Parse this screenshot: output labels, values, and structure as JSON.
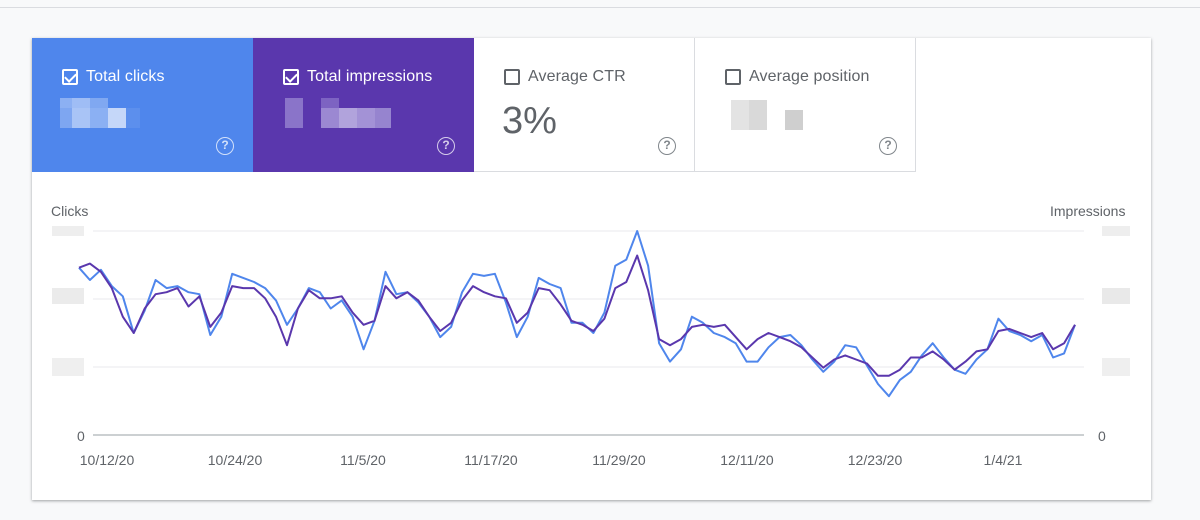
{
  "tiles": {
    "clicks": {
      "label": "Total clicks",
      "checked": true,
      "color": "#4f86ec"
    },
    "impressions": {
      "label": "Total impressions",
      "checked": true,
      "color": "#5a37ad"
    },
    "ctr": {
      "label": "Average CTR",
      "value": "3%",
      "checked": false
    },
    "position": {
      "label": "Average position",
      "checked": false
    }
  },
  "chart_data": {
    "type": "line",
    "y_left_label": "Clicks",
    "y_right_label": "Impressions",
    "y_left_zero": "0",
    "y_right_zero": "0",
    "x_ticks": [
      "10/12/20",
      "10/24/20",
      "11/5/20",
      "11/17/20",
      "11/29/20",
      "12/11/20",
      "12/23/20",
      "1/4/21"
    ],
    "ylim": [
      0,
      1
    ],
    "grid": true,
    "series": [
      {
        "name": "Total clicks",
        "color": "#4f86ec",
        "values": [
          0.82,
          0.76,
          0.81,
          0.73,
          0.68,
          0.5,
          0.61,
          0.76,
          0.72,
          0.73,
          0.7,
          0.69,
          0.49,
          0.58,
          0.79,
          0.77,
          0.75,
          0.72,
          0.66,
          0.54,
          0.62,
          0.72,
          0.7,
          0.62,
          0.66,
          0.58,
          0.42,
          0.56,
          0.8,
          0.69,
          0.7,
          0.65,
          0.58,
          0.48,
          0.53,
          0.7,
          0.79,
          0.78,
          0.79,
          0.65,
          0.48,
          0.58,
          0.77,
          0.74,
          0.72,
          0.55,
          0.55,
          0.5,
          0.6,
          0.83,
          0.86,
          1.0,
          0.83,
          0.45,
          0.36,
          0.42,
          0.58,
          0.55,
          0.5,
          0.48,
          0.45,
          0.36,
          0.36,
          0.43,
          0.48,
          0.49,
          0.44,
          0.37,
          0.31,
          0.36,
          0.44,
          0.43,
          0.34,
          0.25,
          0.19,
          0.27,
          0.31,
          0.39,
          0.45,
          0.38,
          0.32,
          0.3,
          0.37,
          0.42,
          0.57,
          0.51,
          0.49,
          0.46,
          0.49,
          0.38,
          0.4,
          0.54
        ],
        "series_label_shown": false
      },
      {
        "name": "Total impressions",
        "color": "#5a37ad",
        "values": [
          0.82,
          0.84,
          0.8,
          0.72,
          0.58,
          0.5,
          0.62,
          0.69,
          0.7,
          0.72,
          0.63,
          0.68,
          0.53,
          0.6,
          0.73,
          0.72,
          0.72,
          0.67,
          0.58,
          0.44,
          0.62,
          0.71,
          0.67,
          0.67,
          0.68,
          0.6,
          0.54,
          0.56,
          0.73,
          0.67,
          0.7,
          0.66,
          0.58,
          0.51,
          0.55,
          0.66,
          0.73,
          0.7,
          0.68,
          0.67,
          0.55,
          0.6,
          0.72,
          0.71,
          0.64,
          0.56,
          0.54,
          0.51,
          0.57,
          0.72,
          0.75,
          0.88,
          0.71,
          0.47,
          0.44,
          0.47,
          0.53,
          0.54,
          0.53,
          0.54,
          0.48,
          0.42,
          0.47,
          0.5,
          0.48,
          0.46,
          0.43,
          0.38,
          0.33,
          0.37,
          0.39,
          0.37,
          0.35,
          0.29,
          0.29,
          0.32,
          0.38,
          0.38,
          0.41,
          0.37,
          0.32,
          0.36,
          0.41,
          0.42,
          0.51,
          0.52,
          0.5,
          0.48,
          0.5,
          0.42,
          0.45,
          0.54
        ],
        "series_label_shown": false
      }
    ]
  }
}
